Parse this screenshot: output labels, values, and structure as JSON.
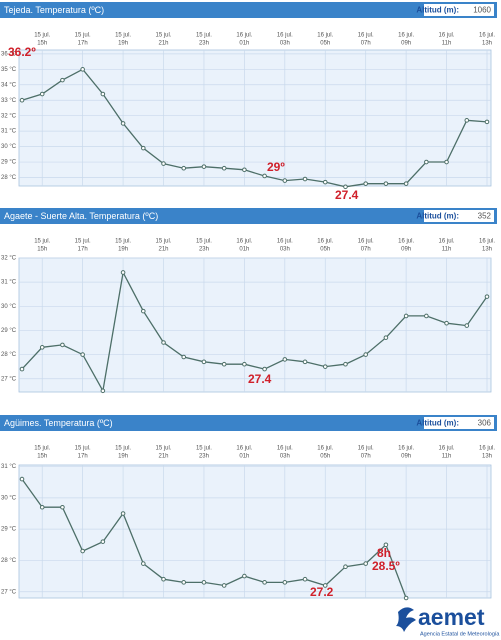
{
  "chart_data": [
    {
      "type": "line",
      "title": "Tejeda. Temperatura (ºC)",
      "altitude_label": "Altitud (m):",
      "altitude": 1060,
      "categories": [
        null,
        [
          "15 jul.",
          "15h"
        ],
        null,
        [
          "15 jul.",
          "17h"
        ],
        null,
        [
          "15 jul.",
          "19h"
        ],
        null,
        [
          "15 jul.",
          "21h"
        ],
        null,
        [
          "15 jul.",
          "23h"
        ],
        null,
        [
          "16 jul.",
          "01h"
        ],
        null,
        [
          "16 jul.",
          "03h"
        ],
        null,
        [
          "16 jul.",
          "05h"
        ],
        null,
        [
          "16 jul.",
          "07h"
        ],
        null,
        [
          "16 jul.",
          "09h"
        ],
        null,
        [
          "16 jul.",
          "11h"
        ],
        null,
        [
          "16 jul.",
          "13h"
        ]
      ],
      "values": [
        33.0,
        33.4,
        34.3,
        35.0,
        33.4,
        31.5,
        29.9,
        28.9,
        28.6,
        28.7,
        28.6,
        28.5,
        28.1,
        27.8,
        27.9,
        27.7,
        27.4,
        27.6,
        27.6,
        27.6,
        29.0,
        29.0,
        31.7,
        31.6
      ],
      "color": "#4d6f68",
      "grid": true,
      "ylim": [
        27.45,
        36.25
      ],
      "yticks": [
        {
          "value": 28,
          "label": "28 °C"
        },
        {
          "value": 29,
          "label": "29 °C"
        },
        {
          "value": 30,
          "label": "30 °C"
        },
        {
          "value": 31,
          "label": "31 °C"
        },
        {
          "value": 32,
          "label": "32 °C"
        },
        {
          "value": 33,
          "label": "33 °C"
        },
        {
          "value": 34,
          "label": "34 °C"
        },
        {
          "value": 35,
          "label": "35 °C"
        },
        {
          "value": 36,
          "label": "36 °C"
        }
      ],
      "annotations": [
        "36.2º",
        "29º",
        "27.4"
      ]
    },
    {
      "type": "line",
      "title": "Agaete - Suerte Alta. Temperatura (ºC)",
      "altitude_label": "Altitud (m):",
      "altitude": 352,
      "categories": [
        null,
        [
          "15 jul.",
          "15h"
        ],
        null,
        [
          "15 jul.",
          "17h"
        ],
        null,
        [
          "15 jul.",
          "19h"
        ],
        null,
        [
          "15 jul.",
          "21h"
        ],
        null,
        [
          "15 jul.",
          "23h"
        ],
        null,
        [
          "16 jul.",
          "01h"
        ],
        null,
        [
          "16 jul.",
          "03h"
        ],
        null,
        [
          "16 jul.",
          "05h"
        ],
        null,
        [
          "16 jul.",
          "07h"
        ],
        null,
        [
          "16 jul.",
          "09h"
        ],
        null,
        [
          "16 jul.",
          "11h"
        ],
        null,
        [
          "16 jul.",
          "13h"
        ]
      ],
      "values": [
        27.4,
        28.3,
        28.4,
        28.0,
        26.5,
        31.4,
        29.8,
        28.5,
        27.9,
        27.7,
        27.6,
        27.6,
        27.4,
        27.8,
        27.7,
        27.5,
        27.6,
        28.0,
        28.7,
        29.6,
        29.6,
        29.3,
        29.2,
        30.4
      ],
      "color": "#4d6f68",
      "grid": true,
      "ylim": [
        26.45,
        32.0
      ],
      "yticks": [
        {
          "value": 27,
          "label": "27 °C"
        },
        {
          "value": 28,
          "label": "28 °C"
        },
        {
          "value": 29,
          "label": "29 °C"
        },
        {
          "value": 30,
          "label": "30 °C"
        },
        {
          "value": 31,
          "label": "31 °C"
        },
        {
          "value": 32,
          "label": "32 °C"
        }
      ],
      "annotations": [
        "27.4"
      ]
    },
    {
      "type": "line",
      "title": "Agüimes. Temperatura (ºC)",
      "altitude_label": "Altitud (m):",
      "altitude": 306,
      "categories": [
        null,
        [
          "15 jul.",
          "15h"
        ],
        null,
        [
          "15 jul.",
          "17h"
        ],
        null,
        [
          "15 jul.",
          "19h"
        ],
        null,
        [
          "15 jul.",
          "21h"
        ],
        null,
        [
          "15 jul.",
          "23h"
        ],
        null,
        [
          "16 jul.",
          "01h"
        ],
        null,
        [
          "16 jul.",
          "03h"
        ],
        null,
        [
          "16 jul.",
          "05h"
        ],
        null,
        [
          "16 jul.",
          "07h"
        ],
        null,
        [
          "16 jul.",
          "09h"
        ],
        null,
        [
          "16 jul.",
          "11h"
        ],
        null,
        [
          "16 jul.",
          "13h"
        ]
      ],
      "values": [
        30.6,
        29.7,
        29.7,
        28.3,
        28.6,
        29.5,
        27.9,
        27.4,
        27.3,
        27.3,
        27.2,
        27.5,
        27.3,
        27.3,
        27.4,
        27.2,
        27.8,
        27.9,
        28.5,
        26.8,
        null,
        null,
        null,
        null
      ],
      "color": "#4d6f68",
      "grid": true,
      "ylim": [
        26.8,
        31.05
      ],
      "yticks": [
        {
          "value": 27,
          "label": "27 °C"
        },
        {
          "value": 28,
          "label": "28 °C"
        },
        {
          "value": 29,
          "label": "29 °C"
        },
        {
          "value": 30,
          "label": "30 °C"
        },
        {
          "value": 31,
          "label": "31 °C"
        }
      ],
      "annotations": [
        "8h",
        "28.5º",
        "27.2"
      ]
    }
  ],
  "logo": {
    "name": "aemet",
    "subtitle": "Agencia Estatal de Meteorología"
  }
}
